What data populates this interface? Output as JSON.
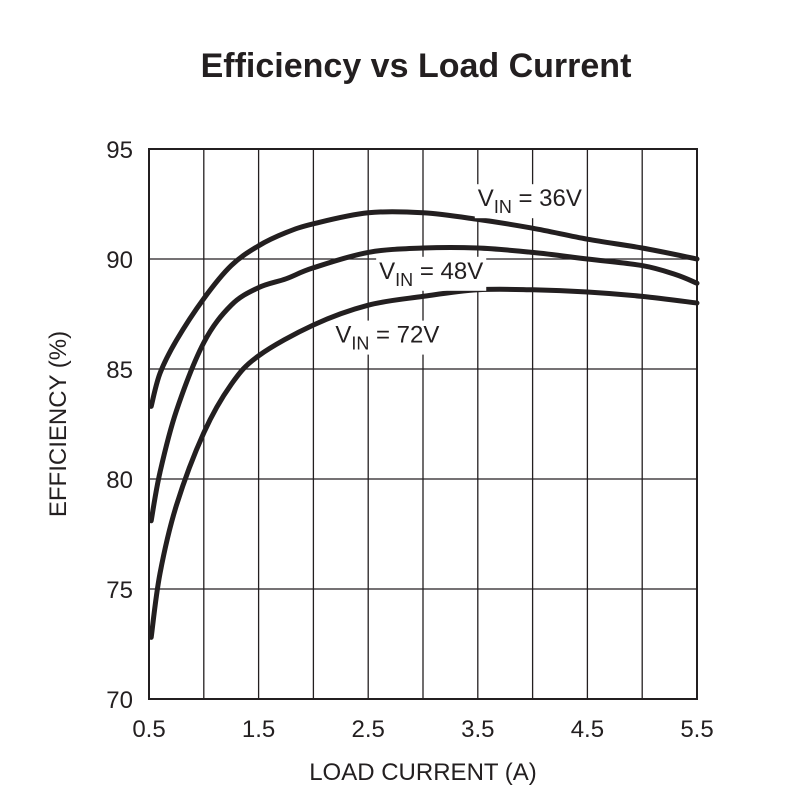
{
  "chart_data": {
    "type": "line",
    "title": "Efficiency vs Load Current",
    "xlabel": "LOAD CURRENT (A)",
    "ylabel": "EFFICIENCY (%)",
    "xlim": [
      0.5,
      5.5
    ],
    "ylim": [
      70,
      95
    ],
    "xticks": [
      0.5,
      1.5,
      2.5,
      3.5,
      4.5,
      5.5
    ],
    "xtick_labels": [
      "0.5",
      "1.5",
      "2.5",
      "3.5",
      "4.5",
      "5.5"
    ],
    "yticks": [
      70,
      75,
      80,
      85,
      90,
      95
    ],
    "ytick_labels": [
      "70",
      "75",
      "80",
      "85",
      "90",
      "95"
    ],
    "x_grid_step": 0.5,
    "y_grid_step": 5,
    "grid": true,
    "series": [
      {
        "name": "VIN = 36V",
        "label_main": "V",
        "label_sub": "IN",
        "label_rest": " = 36V",
        "label_at": [
          3.5,
          92.4
        ],
        "x": [
          0.52,
          0.6,
          0.75,
          1.0,
          1.25,
          1.5,
          1.75,
          2.0,
          2.5,
          3.0,
          3.5,
          4.0,
          4.5,
          5.0,
          5.5
        ],
        "y": [
          83.3,
          84.8,
          86.3,
          88.2,
          89.7,
          90.6,
          91.2,
          91.6,
          92.1,
          92.1,
          91.8,
          91.4,
          90.9,
          90.5,
          90.0
        ]
      },
      {
        "name": "VIN = 48V",
        "label_main": "V",
        "label_sub": "IN",
        "label_rest": " = 48V",
        "label_at": [
          2.6,
          89.1
        ],
        "x": [
          0.52,
          0.6,
          0.75,
          1.0,
          1.25,
          1.5,
          1.75,
          2.0,
          2.5,
          3.0,
          3.5,
          4.0,
          4.5,
          5.0,
          5.3,
          5.5
        ],
        "y": [
          78.1,
          80.3,
          83.1,
          86.2,
          87.9,
          88.7,
          89.1,
          89.6,
          90.3,
          90.5,
          90.5,
          90.3,
          90.0,
          89.7,
          89.3,
          88.9
        ]
      },
      {
        "name": "VIN = 72V",
        "label_main": "V",
        "label_sub": "IN",
        "label_rest": " = 72V",
        "label_at": [
          2.2,
          86.2
        ],
        "x": [
          0.52,
          0.6,
          0.75,
          1.0,
          1.25,
          1.5,
          2.0,
          2.5,
          3.0,
          3.5,
          4.0,
          4.5,
          5.0,
          5.5
        ],
        "y": [
          72.8,
          75.7,
          78.8,
          82.1,
          84.3,
          85.6,
          87.0,
          87.9,
          88.3,
          88.6,
          88.6,
          88.5,
          88.3,
          88.0
        ]
      }
    ]
  }
}
